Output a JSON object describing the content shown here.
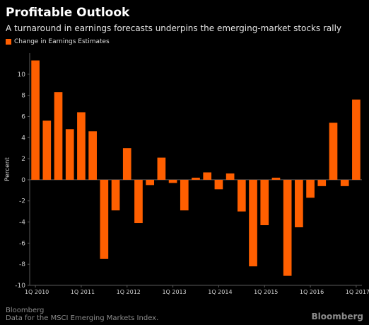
{
  "header": {
    "title": "Profitable Outlook",
    "subtitle": "A turnaround in earnings forecasts underpins the emerging-market stocks rally"
  },
  "footer": {
    "source": "Bloomberg",
    "note": "Data for the MSCI Emerging Markets Index.",
    "brand": "Bloomberg"
  },
  "colors": {
    "bar": "#ff5f00",
    "background": "#000000",
    "axis": "#5a5a5a",
    "text": "#d0d0d0"
  },
  "chart_data": {
    "type": "bar",
    "title": "Profitable Outlook",
    "subtitle": "A turnaround in earnings forecasts underpins the emerging-market stocks rally",
    "ylabel": "Percent",
    "xlabel": "",
    "ylim": [
      -10,
      12
    ],
    "yticks": [
      -10,
      -8,
      -6,
      -4,
      -2,
      0,
      2,
      4,
      6,
      8,
      10
    ],
    "grid": false,
    "legend_position": "top-left",
    "x_tick_labels": [
      "1Q 2010",
      "1Q 2011",
      "1Q 2012",
      "1Q 2013",
      "1Q 2014",
      "1Q 2015",
      "1Q 2016",
      "1Q 2017"
    ],
    "categories": [
      "1Q 2010",
      "2Q 2010",
      "3Q 2010",
      "4Q 2010",
      "1Q 2011",
      "2Q 2011",
      "3Q 2011",
      "4Q 2011",
      "1Q 2012",
      "2Q 2012",
      "3Q 2012",
      "4Q 2012",
      "1Q 2013",
      "2Q 2013",
      "3Q 2013",
      "4Q 2013",
      "1Q 2014",
      "2Q 2014",
      "3Q 2014",
      "4Q 2014",
      "1Q 2015",
      "2Q 2015",
      "3Q 2015",
      "4Q 2015",
      "1Q 2016",
      "2Q 2016",
      "3Q 2016",
      "4Q 2016",
      "1Q 2017"
    ],
    "series": [
      {
        "name": "Change in Earnings Estimates",
        "values": [
          11.3,
          5.6,
          8.3,
          4.8,
          6.4,
          4.6,
          -7.5,
          -2.9,
          3.0,
          -4.1,
          -0.5,
          2.1,
          -0.3,
          -2.9,
          0.2,
          0.7,
          -0.9,
          0.6,
          -3.0,
          -8.2,
          -4.3,
          0.2,
          -9.1,
          -4.5,
          -1.7,
          -0.6,
          5.4,
          -0.6,
          7.6
        ]
      }
    ]
  }
}
